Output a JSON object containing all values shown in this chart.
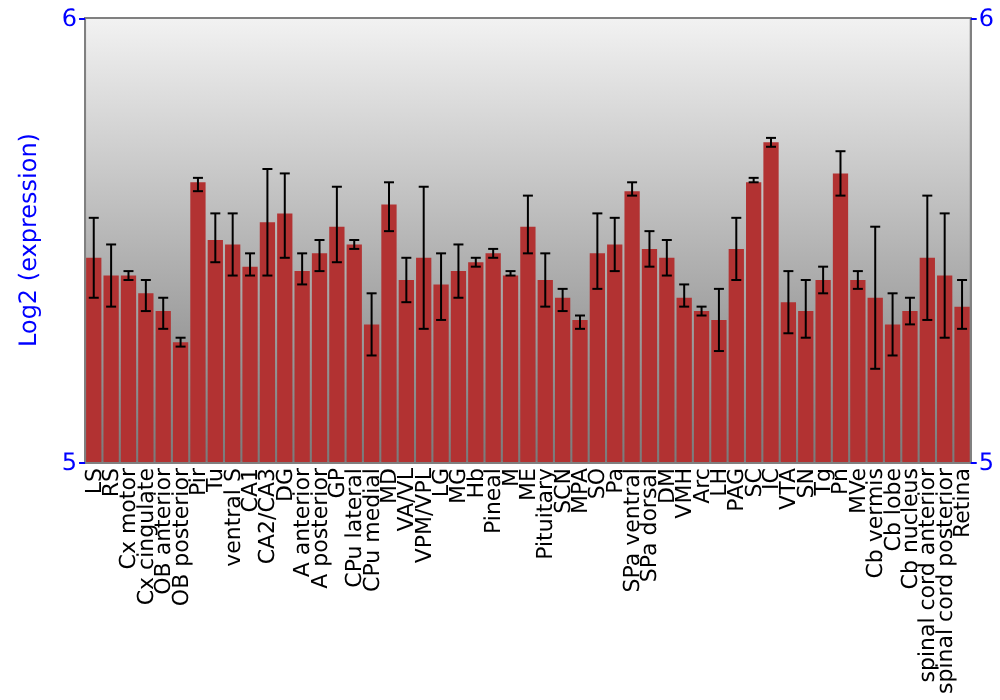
{
  "chart_data": {
    "type": "bar",
    "ylabel": "Log2 (expression)",
    "categories": [
      "LS",
      "RS",
      "Cx motor",
      "Cx cingulate",
      "OB anterior",
      "OB posterior",
      "Pir",
      "Tu",
      "ventral S",
      "CA1",
      "CA2/CA3",
      "DG",
      "A anterior",
      "A posterior",
      "GP",
      "CPu lateral",
      "CPu medial",
      "MD",
      "VA/VL",
      "VPM/VPL",
      "LG",
      "MG",
      "Hb",
      "Pineal",
      "M",
      "ME",
      "Pituitary",
      "SCN",
      "MPA",
      "SO",
      "Pa",
      "SPa ventral",
      "SPa dorsal",
      "DM",
      "VMH",
      "Arc",
      "LH",
      "PAG",
      "SC",
      "IC",
      "VTA",
      "SN",
      "Tg",
      "Pn",
      "MVe",
      "Cb vermis",
      "Cb lobe",
      "Cb nucleus",
      "spinal cord anterior",
      "spinal cord posterior",
      "Retina"
    ],
    "series": [
      {
        "color": "#b23232",
        "values": [
          5.46,
          5.42,
          5.42,
          5.38,
          5.34,
          5.27,
          5.63,
          5.5,
          5.49,
          5.44,
          5.54,
          5.56,
          5.43,
          5.47,
          5.53,
          5.49,
          5.31,
          5.58,
          5.41,
          5.46,
          5.4,
          5.43,
          5.45,
          5.47,
          5.42,
          5.53,
          5.41,
          5.37,
          5.32,
          5.47,
          5.49,
          5.61,
          5.48,
          5.46,
          5.37,
          5.34,
          5.32,
          5.48,
          5.63,
          5.72,
          5.36,
          5.34,
          5.41,
          5.65,
          5.41,
          5.37,
          5.31,
          5.34,
          5.46,
          5.42,
          5.35
        ],
        "errors": [
          [
            5.37,
            5.55
          ],
          [
            5.35,
            5.49
          ],
          [
            5.41,
            5.43
          ],
          [
            5.34,
            5.41
          ],
          [
            5.3,
            5.37
          ],
          [
            5.26,
            5.28
          ],
          [
            5.61,
            5.64
          ],
          [
            5.45,
            5.56
          ],
          [
            5.42,
            5.56
          ],
          [
            5.42,
            5.47
          ],
          [
            5.42,
            5.66
          ],
          [
            5.46,
            5.65
          ],
          [
            5.4,
            5.47
          ],
          [
            5.43,
            5.5
          ],
          [
            5.45,
            5.62
          ],
          [
            5.48,
            5.5
          ],
          [
            5.24,
            5.38
          ],
          [
            5.52,
            5.63
          ],
          [
            5.36,
            5.46
          ],
          [
            5.3,
            5.62
          ],
          [
            5.32,
            5.47
          ],
          [
            5.37,
            5.49
          ],
          [
            5.44,
            5.46
          ],
          [
            5.46,
            5.48
          ],
          [
            5.42,
            5.43
          ],
          [
            5.47,
            5.6
          ],
          [
            5.35,
            5.47
          ],
          [
            5.34,
            5.39
          ],
          [
            5.3,
            5.33
          ],
          [
            5.39,
            5.56
          ],
          [
            5.43,
            5.55
          ],
          [
            5.6,
            5.63
          ],
          [
            5.44,
            5.52
          ],
          [
            5.42,
            5.5
          ],
          [
            5.35,
            5.4
          ],
          [
            5.33,
            5.35
          ],
          [
            5.25,
            5.39
          ],
          [
            5.41,
            5.55
          ],
          [
            5.63,
            5.64
          ],
          [
            5.71,
            5.73
          ],
          [
            5.29,
            5.43
          ],
          [
            5.28,
            5.41
          ],
          [
            5.38,
            5.44
          ],
          [
            5.6,
            5.7
          ],
          [
            5.39,
            5.43
          ],
          [
            5.21,
            5.53
          ],
          [
            5.24,
            5.38
          ],
          [
            5.31,
            5.37
          ],
          [
            5.32,
            5.6
          ],
          [
            5.28,
            5.56
          ],
          [
            5.3,
            5.41
          ]
        ]
      }
    ],
    "ylim": [
      5,
      6
    ],
    "yticks": [
      5,
      6
    ],
    "y2lim": [
      5,
      6
    ],
    "y2ticks": [
      5,
      6
    ],
    "grid": false
  }
}
